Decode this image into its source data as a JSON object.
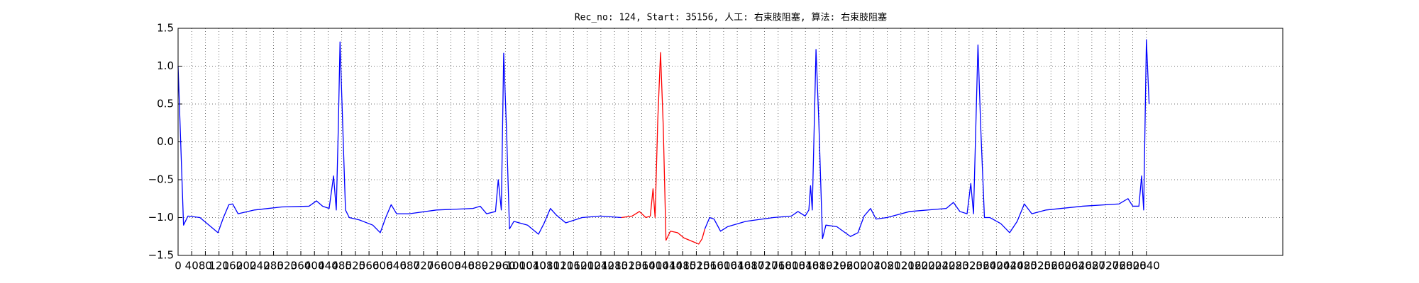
{
  "chart_data": {
    "type": "line",
    "title": "Rec_no: 124, Start: 35156, 人工: 右束肢阻塞, 算法: 右束肢阻塞",
    "xlim": [
      0,
      3240
    ],
    "ylim": [
      -1.5,
      1.5
    ],
    "yticks": [
      {
        "value": -1.5,
        "label": "−1.5"
      },
      {
        "value": -1.0,
        "label": "−1.0"
      },
      {
        "value": -0.5,
        "label": "−0.5"
      },
      {
        "value": 0,
        "label": "0.0"
      },
      0.5,
      {
        "value": 1.0,
        "label": "1.0"
      },
      1.5
    ],
    "xticks": [
      0,
      40,
      80,
      120,
      160,
      200,
      240,
      280,
      320,
      360,
      400,
      440,
      480,
      520,
      560,
      600,
      640,
      680,
      720,
      760,
      800,
      840,
      880,
      920,
      960,
      1000,
      1040,
      1080,
      1120,
      1160,
      1200,
      1240,
      1280,
      1320,
      1360,
      1400,
      1440,
      1480,
      1520,
      1560,
      1600,
      1640,
      1680,
      1720,
      1760,
      1800,
      1840,
      1880,
      1920,
      1960,
      2000,
      2040,
      2080,
      2120,
      2160,
      2200,
      2240,
      2280,
      2320,
      2360,
      2400,
      2440,
      2480,
      2520,
      2560,
      2600,
      2640,
      2680,
      2720,
      2760,
      2800,
      2840
    ],
    "grid": true,
    "series": [
      {
        "color": "#0000ff",
        "x": [
          0,
          16,
          29,
          64,
          96,
          117,
          133,
          149,
          160,
          176,
          224,
          304,
          384,
          406,
          424,
          443,
          456,
          464,
          470,
          475,
          483,
          491,
          502,
          531,
          571,
          593,
          609,
          625,
          641,
          678,
          758,
          865,
          886,
          905,
          931,
          939,
          948,
          955,
          963,
          972,
          985,
          1025,
          1057,
          1073,
          1092,
          1110,
          1137,
          1185,
          1238,
          1300
        ],
        "values": [
          1.0,
          -1.1,
          -0.98,
          -1.0,
          -1.12,
          -1.2,
          -1.0,
          -0.83,
          -0.82,
          -0.95,
          -0.9,
          -0.86,
          -0.85,
          -0.78,
          -0.85,
          -0.88,
          -0.45,
          -0.9,
          0.2,
          1.32,
          0.2,
          -0.9,
          -1.0,
          -1.03,
          -1.1,
          -1.2,
          -1.0,
          -0.83,
          -0.95,
          -0.95,
          -0.9,
          -0.88,
          -0.85,
          -0.95,
          -0.92,
          -0.5,
          -0.9,
          1.17,
          0.2,
          -1.15,
          -1.05,
          -1.1,
          -1.22,
          -1.08,
          -0.88,
          -0.97,
          -1.07,
          -1.0,
          -0.98,
          -1.0
        ]
      },
      {
        "color": "#ff0000",
        "x": [
          1300,
          1332,
          1353,
          1372,
          1385,
          1393,
          1399,
          1407,
          1415,
          1423,
          1431,
          1444,
          1465,
          1484,
          1511,
          1527,
          1537,
          1545
        ],
        "values": [
          -1.0,
          -0.98,
          -0.92,
          -1.0,
          -0.98,
          -0.62,
          -1.0,
          0.3,
          1.18,
          0.2,
          -1.3,
          -1.18,
          -1.2,
          -1.27,
          -1.32,
          -1.35,
          -1.28,
          -1.15
        ]
      },
      {
        "color": "#0000ff",
        "x": [
          1545,
          1559,
          1572,
          1591,
          1612,
          1665,
          1746,
          1799,
          1818,
          1839,
          1850,
          1855,
          1860,
          1871,
          1879,
          1890,
          1900,
          1932,
          1972,
          1994,
          2012,
          2031,
          2047,
          2079,
          2146,
          2253,
          2274,
          2293,
          2314,
          2325,
          2333,
          2346,
          2354,
          2365,
          2381,
          2413,
          2439,
          2461,
          2482,
          2504,
          2546,
          2653,
          2760,
          2786,
          2800,
          2818,
          2826,
          2832,
          2840,
          2848
        ],
        "values": [
          -1.15,
          -1.0,
          -1.02,
          -1.18,
          -1.12,
          -1.05,
          -1.0,
          -0.98,
          -0.92,
          -0.98,
          -0.9,
          -0.58,
          -0.9,
          1.22,
          0.3,
          -1.28,
          -1.1,
          -1.12,
          -1.25,
          -1.2,
          -0.98,
          -0.88,
          -1.02,
          -1.0,
          -0.92,
          -0.88,
          -0.8,
          -0.92,
          -0.95,
          -0.55,
          -0.95,
          1.28,
          0.2,
          -1.0,
          -1.0,
          -1.08,
          -1.2,
          -1.05,
          -0.82,
          -0.95,
          -0.9,
          -0.85,
          -0.82,
          -0.75,
          -0.85,
          -0.85,
          -0.45,
          -0.9,
          1.35,
          0.5
        ]
      }
    ]
  }
}
